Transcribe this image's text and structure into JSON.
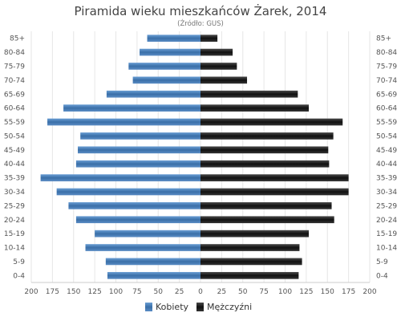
{
  "chart_data": {
    "type": "bar",
    "orientation": "horizontal",
    "title": "Piramida wieku mieszkańców Żarek, 2014",
    "subtitle": "(Źródło: GUS)",
    "categories": [
      "85+",
      "80-84",
      "75-79",
      "70-74",
      "65-69",
      "60-64",
      "55-59",
      "50-54",
      "45-49",
      "40-44",
      "35-39",
      "30-34",
      "25-29",
      "20-24",
      "15-19",
      "10-14",
      "5-9",
      "0-4"
    ],
    "series": [
      {
        "name": "Kobiety",
        "color": "#4a7fb8",
        "side": "left",
        "values": [
          63,
          72,
          85,
          80,
          111,
          162,
          181,
          142,
          145,
          147,
          189,
          170,
          156,
          147,
          125,
          136,
          112,
          110
        ]
      },
      {
        "name": "Mężczyźni",
        "color": "#2a2a2a",
        "side": "right",
        "values": [
          20,
          38,
          43,
          55,
          115,
          128,
          168,
          157,
          151,
          152,
          175,
          175,
          155,
          158,
          128,
          117,
          120,
          116
        ]
      }
    ],
    "x_ticks": [
      "200",
      "175",
      "150",
      "125",
      "100",
      "75",
      "50",
      "25",
      "0",
      "25",
      "50",
      "75",
      "100",
      "125",
      "150",
      "175",
      "200"
    ],
    "xlim": [
      -200,
      200
    ],
    "grid": true,
    "legend_position": "bottom-center"
  }
}
